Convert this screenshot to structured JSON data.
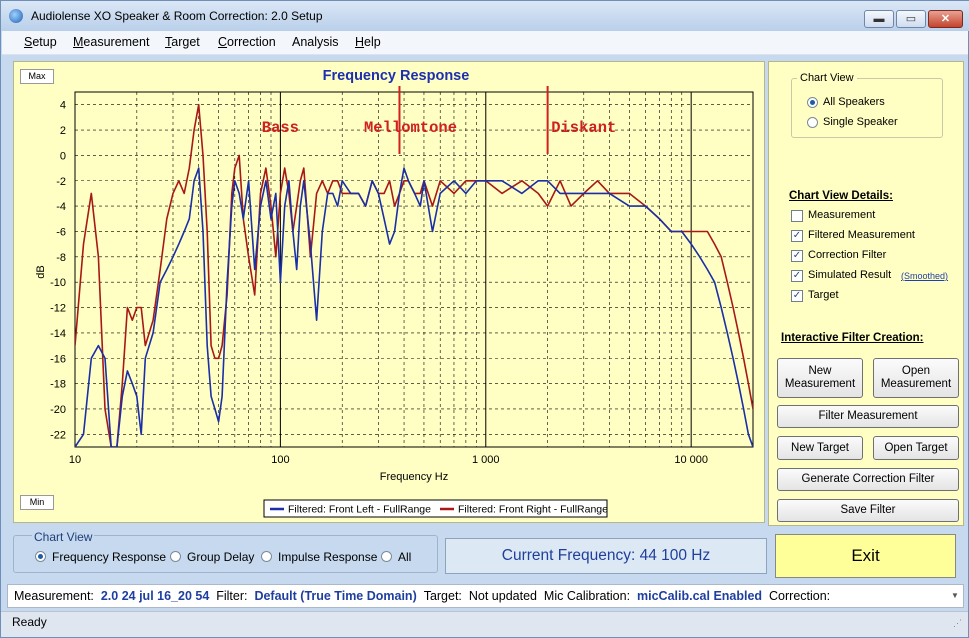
{
  "window": {
    "title": "Audiolense XO Speaker & Room Correction: 2.0 Setup",
    "buttons": {
      "minimize": "▬",
      "maximize": "▭",
      "close": "✕"
    }
  },
  "menu": [
    {
      "u": "S",
      "rest": "etup"
    },
    {
      "u": "M",
      "rest": "easurement"
    },
    {
      "u": "T",
      "rest": "arget"
    },
    {
      "u": "C",
      "rest": "orrection"
    },
    {
      "u": "",
      "rest": "Analysis"
    },
    {
      "u": "H",
      "rest": "elp"
    }
  ],
  "chart_panel": {
    "max_label": "Max",
    "min_label": "Min"
  },
  "chart_data": {
    "type": "line",
    "title": "Frequency Response",
    "xlabel": "Frequency Hz",
    "ylabel": "dB",
    "xscale": "log",
    "xlim": [
      10,
      20000
    ],
    "ylim": [
      -23,
      5
    ],
    "x_ticks": [
      10,
      100,
      1000,
      10000
    ],
    "x_tick_labels": [
      "10",
      "100",
      "1 000",
      "10 000"
    ],
    "y_ticks": [
      4,
      2,
      0,
      -2,
      -4,
      -6,
      -8,
      -10,
      -12,
      -14,
      -16,
      -18,
      -20,
      -22
    ],
    "grid": true,
    "legend_placement": "bottom-center",
    "annotations": [
      {
        "text": "Bass",
        "x": 100
      },
      {
        "text": "Mellomtone",
        "x": 430
      },
      {
        "text": "Diskant",
        "x": 3000
      }
    ],
    "crossover_markers": [
      380,
      2000
    ],
    "series": [
      {
        "name": "Filtered: Front Left - FullRange",
        "color": "#1a2fa8",
        "x": [
          10,
          11,
          12,
          13,
          14,
          15,
          16,
          17,
          18,
          19,
          20,
          21,
          22,
          24,
          26,
          28,
          30,
          32,
          34,
          36,
          38,
          40,
          42,
          44,
          46,
          48,
          50,
          52,
          55,
          58,
          60,
          63,
          66,
          70,
          75,
          80,
          85,
          90,
          95,
          100,
          105,
          110,
          115,
          120,
          125,
          130,
          140,
          150,
          160,
          170,
          180,
          190,
          200,
          220,
          240,
          260,
          280,
          300,
          320,
          340,
          360,
          380,
          400,
          420,
          450,
          480,
          500,
          550,
          600,
          700,
          800,
          900,
          1000,
          1200,
          1500,
          1800,
          2000,
          2300,
          2600,
          3000,
          3500,
          4000,
          5000,
          6000,
          7000,
          8000,
          9000,
          10000,
          11000,
          12000,
          13000,
          14000,
          15000,
          16000,
          17000,
          18000,
          19000,
          20000
        ],
        "values": [
          -23,
          -22,
          -16,
          -15,
          -16,
          -23,
          -23,
          -19,
          -17,
          -18,
          -19,
          -22,
          -16,
          -14,
          -10,
          -9,
          -8,
          -7,
          -6,
          -5,
          -2,
          -1,
          -6,
          -15,
          -19,
          -20,
          -21,
          -19,
          -10,
          -4,
          -2,
          -3,
          -5,
          -2,
          -9,
          -4,
          -2,
          -5,
          -3,
          -10,
          -4,
          -2,
          -6,
          -9,
          -4,
          -2,
          -7,
          -13,
          -6,
          -3,
          -3,
          -4,
          -2,
          -3,
          -3,
          -4,
          -2,
          -3,
          -5,
          -7,
          -6,
          -3,
          -1,
          -2,
          -3,
          -4,
          -2,
          -6,
          -3,
          -2,
          -3,
          -2,
          -2,
          -2,
          -3,
          -2,
          -2,
          -3,
          -3,
          -3,
          -3,
          -3,
          -4,
          -4,
          -5,
          -6,
          -6,
          -7,
          -8,
          -9,
          -10,
          -12,
          -14,
          -16,
          -18,
          -20,
          -22,
          -23
        ]
      },
      {
        "name": "Filtered: Front Right - FullRange",
        "color": "#a81818",
        "x": [
          10,
          11,
          12,
          13,
          14,
          15,
          16,
          17,
          18,
          19,
          20,
          21,
          22,
          24,
          26,
          28,
          30,
          32,
          34,
          36,
          38,
          40,
          42,
          44,
          46,
          48,
          50,
          52,
          55,
          58,
          60,
          63,
          66,
          70,
          75,
          80,
          85,
          90,
          95,
          100,
          105,
          110,
          115,
          120,
          125,
          130,
          140,
          150,
          160,
          170,
          180,
          190,
          200,
          220,
          240,
          260,
          280,
          300,
          320,
          340,
          360,
          380,
          400,
          420,
          450,
          480,
          500,
          550,
          600,
          700,
          800,
          900,
          1000,
          1200,
          1500,
          1800,
          2000,
          2300,
          2600,
          3000,
          3500,
          4000,
          5000,
          6000,
          7000,
          8000,
          9000,
          10000,
          11000,
          12000,
          13000,
          14000,
          15000,
          16000,
          17000,
          18000,
          19000,
          20000
        ],
        "values": [
          -15,
          -7,
          -3,
          -8,
          -20,
          -23,
          -23,
          -18,
          -12,
          -13,
          -12,
          -12,
          -15,
          -13,
          -9,
          -5,
          -3,
          -2,
          -3,
          -1,
          2,
          4,
          0,
          -6,
          -15,
          -16,
          -16,
          -15,
          -11,
          -3,
          -1,
          0,
          -5,
          -8,
          -11,
          -3,
          -1,
          -4,
          -8,
          -3,
          -1,
          -3,
          -6,
          -4,
          -2,
          -1,
          -8,
          -3,
          -2,
          -3,
          -2,
          -2,
          -3,
          -3,
          -3,
          -4,
          -2,
          -3,
          -3,
          -2,
          -4,
          -3,
          -2,
          -2,
          -3,
          -3,
          -2,
          -4,
          -2,
          -3,
          -2,
          -2,
          -2,
          -3,
          -2,
          -3,
          -4,
          -2,
          -4,
          -3,
          -2,
          -3,
          -3,
          -4,
          -5,
          -6,
          -6,
          -6,
          -6,
          -6,
          -7,
          -8,
          -10,
          -12,
          -14,
          -16,
          -18,
          -20
        ]
      }
    ]
  },
  "right_panel": {
    "chart_view_title": "Chart View",
    "chart_view_options": [
      {
        "label": "All Speakers",
        "selected": true
      },
      {
        "label": "Single Speaker",
        "selected": false
      }
    ],
    "details_title": "Chart View Details:",
    "details": [
      {
        "label": "Measurement",
        "checked": false
      },
      {
        "label": "Filtered Measurement",
        "checked": true
      },
      {
        "label": "Correction Filter",
        "checked": true
      },
      {
        "label": "Simulated Result",
        "checked": true
      },
      {
        "label": "Target",
        "checked": true
      }
    ],
    "smoothed_link": "(Smoothed)",
    "interactive_title": "Interactive Filter Creation:",
    "buttons": {
      "new_measurement": "New\nMeasurement",
      "open_measurement": "Open\nMeasurement",
      "filter_measurement": "Filter Measurement",
      "new_target": "New Target",
      "open_target": "Open Target",
      "generate_correction_filter": "Generate Correction Filter",
      "save_filter": "Save Filter"
    }
  },
  "bottom_chart_view": {
    "title": "Chart View",
    "options": [
      {
        "label": "Frequency Response",
        "selected": true
      },
      {
        "label": "Group Delay",
        "selected": false
      },
      {
        "label": "Impulse Response",
        "selected": false
      },
      {
        "label": "All",
        "selected": false
      }
    ]
  },
  "current_frequency": "Current Frequency: 44 100 Hz",
  "exit_label": "Exit",
  "status_line": {
    "measurement_label": "Measurement:",
    "measurement_value": "2.0 24 jul 16_20 54",
    "filter_label": "Filter:",
    "filter_value": "Default (True Time Domain)",
    "target_label": "Target:",
    "target_value": "Not updated",
    "mic_label": "Mic Calibration:",
    "mic_value": "micCalib.cal Enabled",
    "correction_label": "Correction:"
  },
  "status_bar": "Ready"
}
